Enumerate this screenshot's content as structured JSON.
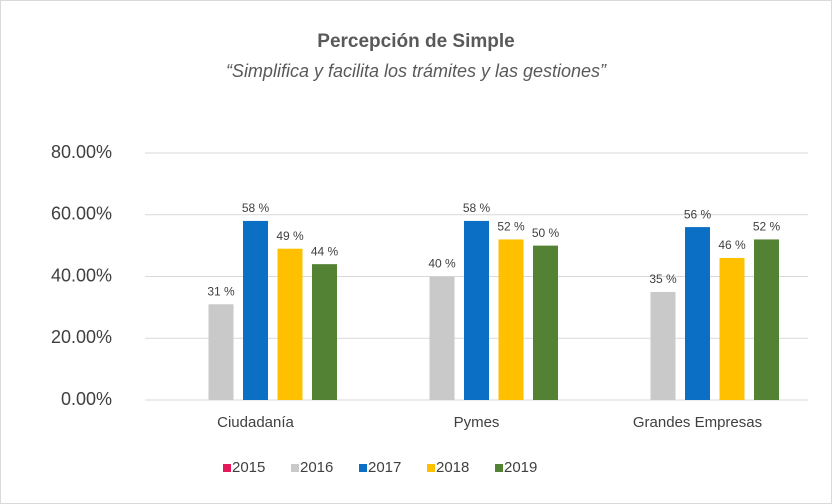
{
  "chart_data": {
    "type": "bar",
    "title": "Percepción de Simple",
    "subtitle": "“Simplifica y facilita los trámites y las gestiones”",
    "categories": [
      "Ciudadanía",
      "Pymes",
      "Grandes Empresas"
    ],
    "series": [
      {
        "name": "2015",
        "color": "#e6195a",
        "values": [
          null,
          null,
          null
        ],
        "value_labels": [
          null,
          null,
          null
        ]
      },
      {
        "name": "2016",
        "color": "#c9c9c9",
        "values": [
          31,
          40,
          35
        ],
        "value_labels": [
          "31 %",
          "40 %",
          "35 %"
        ]
      },
      {
        "name": "2017",
        "color": "#0b6fc6",
        "values": [
          58,
          58,
          56
        ],
        "value_labels": [
          "58 %",
          "58 %",
          "56 %"
        ]
      },
      {
        "name": "2018",
        "color": "#ffc000",
        "values": [
          49,
          52,
          46
        ],
        "value_labels": [
          "49 %",
          "52 %",
          "46 %"
        ]
      },
      {
        "name": "2019",
        "color": "#548235",
        "values": [
          44,
          50,
          52
        ],
        "value_labels": [
          "44 %",
          "50 %",
          "52 %"
        ]
      }
    ],
    "ylim": [
      0,
      80
    ],
    "yticks": [
      {
        "value": 0,
        "label": "0.00%"
      },
      {
        "value": 20,
        "label": "20.00%"
      },
      {
        "value": 40,
        "label": "40.00%"
      },
      {
        "value": 60,
        "label": "60.00%"
      },
      {
        "value": 80,
        "label": "80.00%"
      }
    ],
    "grid": true,
    "legend": "bottom"
  }
}
